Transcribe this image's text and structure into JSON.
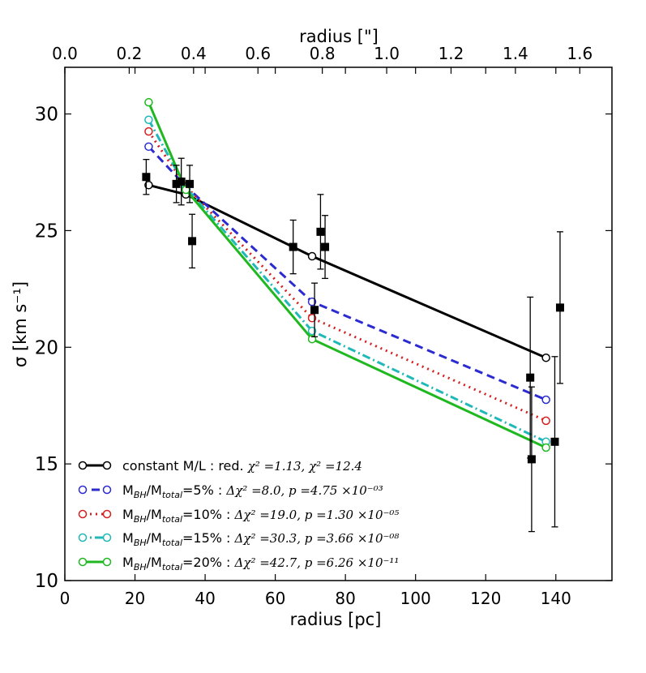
{
  "chart_data": {
    "type": "scatter",
    "title": "",
    "xlabel": "radius [pc]",
    "ylabel": "σ [km s⁻¹]",
    "x2label": "radius [\"]",
    "xlim": [
      0,
      156
    ],
    "ylim": [
      10,
      32
    ],
    "x2lim": [
      0,
      1.7
    ],
    "xticks": [
      "0",
      "20",
      "40",
      "60",
      "80",
      "100",
      "120",
      "140"
    ],
    "yticks": [
      "10",
      "15",
      "20",
      "25",
      "30"
    ],
    "x2ticks": [
      "0.0",
      "0.2",
      "0.4",
      "0.6",
      "0.8",
      "1.0",
      "1.2",
      "1.4",
      "1.6"
    ],
    "grid": false,
    "legend_position": "bottom-left",
    "observed": {
      "name": "data",
      "color": "#000000",
      "points": [
        {
          "x": 23.2,
          "y": 27.3,
          "err": 0.75
        },
        {
          "x": 31.8,
          "y": 27.0,
          "err": 0.8
        },
        {
          "x": 33.2,
          "y": 27.1,
          "err": 1.0
        },
        {
          "x": 35.6,
          "y": 27.0,
          "err": 0.8
        },
        {
          "x": 36.3,
          "y": 24.55,
          "err": 1.15
        },
        {
          "x": 65.1,
          "y": 24.3,
          "err": 1.15
        },
        {
          "x": 71.2,
          "y": 21.6,
          "err": 1.15
        },
        {
          "x": 72.9,
          "y": 24.95,
          "err": 1.6
        },
        {
          "x": 74.2,
          "y": 24.3,
          "err": 1.35
        },
        {
          "x": 132.7,
          "y": 18.7,
          "err": 3.45
        },
        {
          "x": 133.1,
          "y": 15.2,
          "err": 3.1
        },
        {
          "x": 139.7,
          "y": 15.95,
          "err": 3.65
        },
        {
          "x": 141.2,
          "y": 21.7,
          "err": 3.25
        }
      ]
    },
    "series": [
      {
        "name": "constant M/L",
        "color": "#000000",
        "dash": "",
        "x": [
          23.9,
          34.5,
          70.5,
          137.2
        ],
        "y": [
          26.95,
          26.55,
          23.9,
          19.55
        ],
        "legend": "constant M/L : red. ",
        "stat": "χ² =1.13,  χ² =12.4"
      },
      {
        "name": "MBH/Mtotal=5%",
        "color": "#2b2bd0",
        "dash": "10,6",
        "x": [
          23.9,
          34.5,
          70.5,
          137.2
        ],
        "y": [
          28.6,
          26.9,
          21.95,
          17.75
        ],
        "legend": "M_BH/M_total=5% : ",
        "stat": "Δχ² =8.0,  p =4.75 ×10⁻⁰³"
      },
      {
        "name": "MBH/Mtotal=10%",
        "color": "#d42020",
        "dash": "2,5",
        "x": [
          23.9,
          34.5,
          70.5,
          137.2
        ],
        "y": [
          29.25,
          26.9,
          21.25,
          16.85
        ],
        "legend": "M_BH/M_total=10% : ",
        "stat": "Δχ² =19.0,  p =1.30 ×10⁻⁰⁵"
      },
      {
        "name": "MBH/Mtotal=15%",
        "color": "#20b8b8",
        "dash": "10,4,2,4",
        "x": [
          23.9,
          34.5,
          70.5,
          137.2
        ],
        "y": [
          29.75,
          26.85,
          20.7,
          15.95
        ],
        "legend": "M_BH/M_total=15% : ",
        "stat": "Δχ² =30.3,  p =3.66 ×10⁻⁰⁸"
      },
      {
        "name": "MBH/Mtotal=20%",
        "color": "#20b820",
        "dash": "",
        "x": [
          23.9,
          34.5,
          70.5,
          137.2
        ],
        "y": [
          30.5,
          26.75,
          20.35,
          15.7
        ],
        "legend": "M_BH/M_total=20% : ",
        "stat": "Δχ² =42.7,  p =6.26 ×10⁻¹¹"
      }
    ],
    "legend_labels": {
      "s0": {
        "main": "constant M/L : red. ",
        "stat": "χ² =1.13,  χ² =12.4"
      },
      "s1": {
        "pre": "M",
        "sub1": "BH",
        "mid": "/M",
        "sub2": "total",
        "post": "=5% : ",
        "stat": "Δχ² =8.0,  p =4.75 ×10⁻⁰³"
      },
      "s2": {
        "pre": "M",
        "sub1": "BH",
        "mid": "/M",
        "sub2": "total",
        "post": "=10% : ",
        "stat": "Δχ² =19.0,  p =1.30 ×10⁻⁰⁵"
      },
      "s3": {
        "pre": "M",
        "sub1": "BH",
        "mid": "/M",
        "sub2": "total",
        "post": "=15% : ",
        "stat": "Δχ² =30.3,  p =3.66 ×10⁻⁰⁸"
      },
      "s4": {
        "pre": "M",
        "sub1": "BH",
        "mid": "/M",
        "sub2": "total",
        "post": "=20% : ",
        "stat": "Δχ² =42.7,  p =6.26 ×10⁻¹¹"
      }
    }
  }
}
